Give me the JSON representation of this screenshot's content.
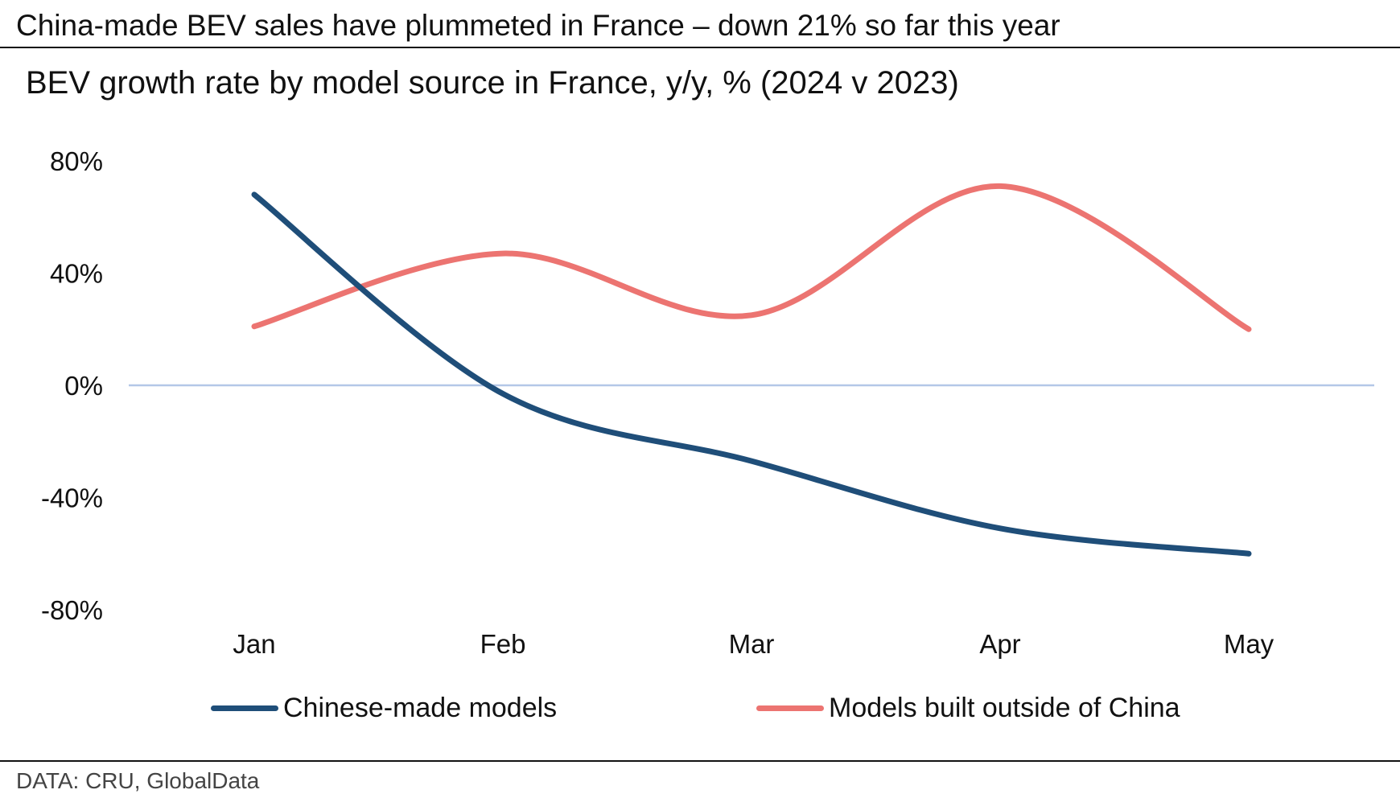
{
  "header": {
    "headline": "China-made BEV sales have plummeted in France – down 21% so far this year",
    "subtitle": "BEV growth rate by model source in France, y/y, % (2024 v 2023)"
  },
  "footer": {
    "source": "DATA: CRU, GlobalData"
  },
  "chart_data": {
    "type": "line",
    "title": "BEV growth rate by model source in France, y/y, % (2024 v 2023)",
    "xlabel": "",
    "ylabel": "",
    "categories": [
      "Jan",
      "Feb",
      "Mar",
      "Apr",
      "May"
    ],
    "ylim": [
      -80,
      80
    ],
    "yticks": [
      80,
      40,
      0,
      -40,
      -80
    ],
    "ytick_labels": [
      "80%",
      "40%",
      "0%",
      "-40%",
      "-80%"
    ],
    "grid": false,
    "zero_line": true,
    "smooth": true,
    "legend_position": "bottom",
    "series": [
      {
        "name": "Chinese-made models",
        "color": "#1f4e79",
        "values": [
          68,
          -3,
          -27,
          -51,
          -60
        ]
      },
      {
        "name": "Models built outside of China",
        "color": "#ec7471",
        "values": [
          21,
          47,
          25,
          71,
          20
        ]
      }
    ],
    "colors": {
      "zero_line": "#b4c7e7",
      "text": "#111111"
    }
  }
}
